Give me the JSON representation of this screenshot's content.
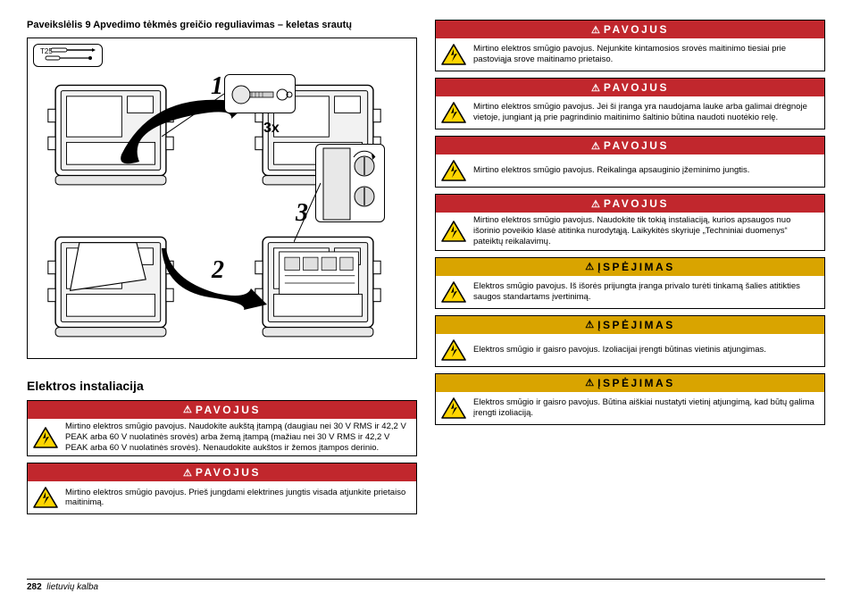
{
  "figure": {
    "caption": "Paveikslėlis 9  Apvedimo tėkmės greičio reguliavimas – keletas srautų",
    "tool_label": "T25",
    "steps": [
      "1",
      "2",
      "3"
    ],
    "repeat_label": "3x"
  },
  "section_heading": "Elektros instaliacija",
  "left_warnings": [
    {
      "level": "danger",
      "head": "PAVOJUS",
      "text": "Mirtino elektros smūgio pavojus. Naudokite aukštą įtampą (daugiau nei 30 V RMS ir 42,2 V PEAK arba 60 V nuolatinės srovės) arba žemą įtampą (mažiau nei 30 V RMS ir 42,2 V PEAK arba 60 V nuolatinės srovės). Nenaudokite aukštos ir žemos įtampos derinio."
    },
    {
      "level": "danger",
      "head": "PAVOJUS",
      "text": "Mirtino elektros smūgio pavojus. Prieš jungdami elektrines jungtis visada atjunkite prietaiso maitinimą."
    }
  ],
  "right_warnings": [
    {
      "level": "danger",
      "head": "PAVOJUS",
      "text": "Mirtino elektros smūgio pavojus. Nejunkite kintamosios srovės maitinimo tiesiai prie pastoviąja srove maitinamo prietaiso."
    },
    {
      "level": "danger",
      "head": "PAVOJUS",
      "text": "Mirtino elektros smūgio pavojus. Jei ši įranga yra naudojama lauke arba galimai drėgnoje vietoje, jungiant ją prie pagrindinio maitinimo šaltinio būtina naudoti nuotėkio relę."
    },
    {
      "level": "danger",
      "head": "PAVOJUS",
      "text": "Mirtino elektros smūgio pavojus. Reikalinga apsauginio įžeminimo jungtis."
    },
    {
      "level": "danger",
      "head": "PAVOJUS",
      "text": "Mirtino elektros smūgio pavojus. Naudokite tik tokią instaliaciją, kurios apsaugos nuo išorinio poveikio klasė atitinka nurodytąją. Laikykitės skyriuje „Techniniai duomenys“ pateiktų reikalavimų."
    },
    {
      "level": "warn",
      "head": "ĮSPĖJIMAS",
      "text": "Elektros smūgio pavojus. Iš išorės prijungta įranga privalo turėti tinkamą šalies atitikties saugos standartams įvertinimą."
    },
    {
      "level": "warn",
      "head": "ĮSPĖJIMAS",
      "text": "Elektros smūgio ir gaisro pavojus. Izoliacijai įrengti būtinas vietinis atjungimas."
    },
    {
      "level": "warn",
      "head": "ĮSPĖJIMAS",
      "text": "Elektros smūgio ir gaisro pavojus. Būtina aiškiai nustatyti vietinį atjungimą, kad būtų galima įrengti izoliaciją."
    }
  ],
  "footer": {
    "page": "282",
    "lang": "lietuvių kalba"
  },
  "colors": {
    "danger_bg": "#c1272d",
    "warn_bg": "#d9a400",
    "icon_yellow": "#ffd500",
    "icon_stroke": "#000000"
  }
}
